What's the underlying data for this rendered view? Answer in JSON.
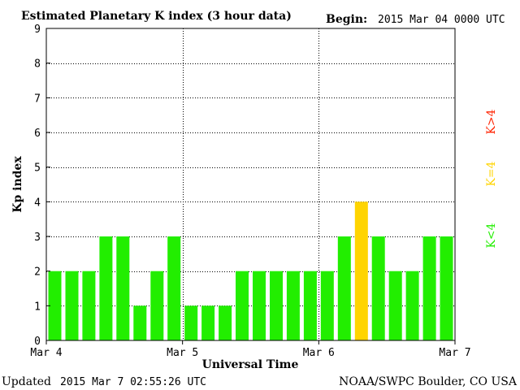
{
  "header": {
    "title": "Estimated Planetary K index (3 hour data)",
    "begin_label": "Begin:",
    "begin_value": "2015 Mar 04 0000 UTC"
  },
  "footer": {
    "updated_label": "Updated",
    "updated_value": "2015 Mar  7 02:55:26 UTC",
    "source": "NOAA/SWPC Boulder, CO USA"
  },
  "legend": {
    "high": "K>4",
    "equal": "K=4",
    "low": "K<4",
    "colors": {
      "high": "#ff2200",
      "equal": "#ffd400",
      "low": "#22ee00"
    }
  },
  "chart_data": {
    "type": "bar",
    "title": "Estimated Planetary K index (3 hour data)",
    "xlabel": "Universal Time",
    "ylabel": "Kp index",
    "ylim": [
      0,
      9
    ],
    "yticks": [
      0,
      1,
      2,
      3,
      4,
      5,
      6,
      7,
      8,
      9
    ],
    "x_day_labels": [
      "Mar 4",
      "Mar 5",
      "Mar 6",
      "Mar 7"
    ],
    "grid": true,
    "interval_hours": 3,
    "values": [
      2,
      2,
      2,
      3,
      3,
      1,
      2,
      3,
      1,
      1,
      1,
      2,
      2,
      2,
      2,
      2,
      2,
      3,
      4,
      3,
      2,
      2,
      3,
      3
    ],
    "colors": {
      "low": "#22ee00",
      "equal": "#ffd400",
      "high": "#ff2200"
    }
  }
}
